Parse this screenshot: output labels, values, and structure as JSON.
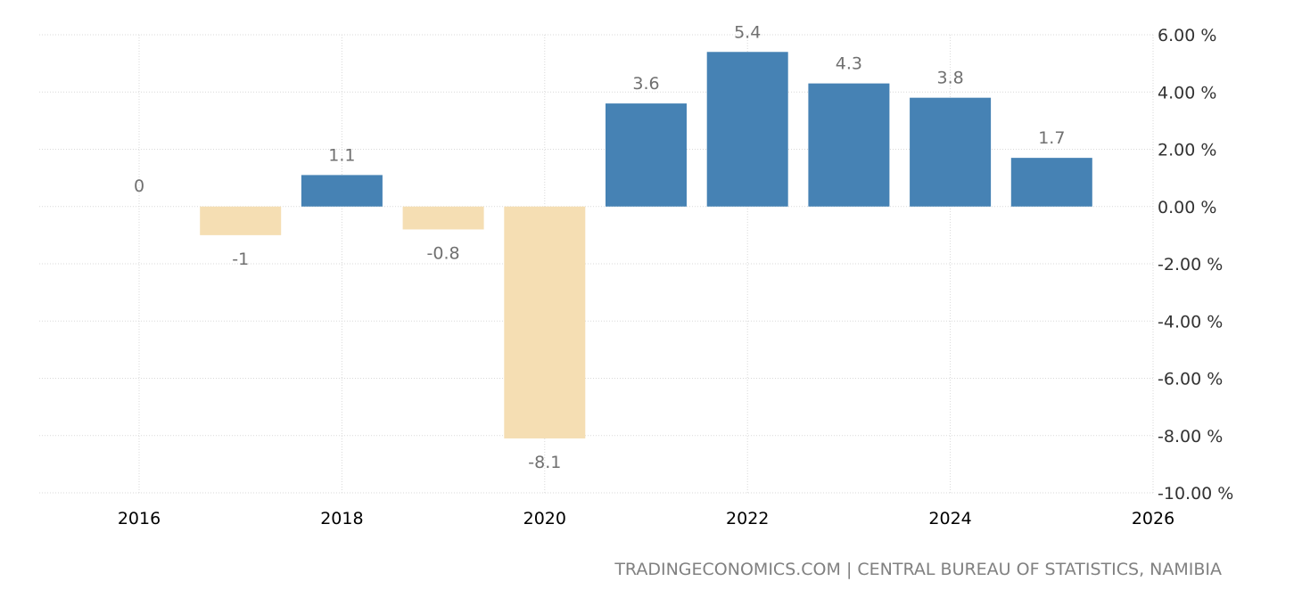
{
  "chart_data": {
    "type": "bar",
    "x": [
      2016,
      2017,
      2018,
      2019,
      2020,
      2021,
      2022,
      2023,
      2024,
      2025
    ],
    "values": [
      0,
      -1,
      1.1,
      -0.8,
      -8.1,
      3.6,
      5.4,
      4.3,
      3.8,
      1.7
    ],
    "data_labels": [
      "0",
      "-1",
      "1.1",
      "-0.8",
      "-8.1",
      "3.6",
      "5.4",
      "4.3",
      "3.8",
      "1.7"
    ],
    "xlim": [
      2016,
      2026
    ],
    "ylim": [
      -10,
      6
    ],
    "x_ticks": [
      2016,
      2018,
      2020,
      2022,
      2024,
      2026
    ],
    "y_ticks": [
      6,
      4,
      2,
      0,
      -2,
      -4,
      -6,
      -8,
      -10
    ],
    "y_tick_labels": [
      "6.00 %",
      "4.00 %",
      "2.00 %",
      "0.00 %",
      "-2.00 %",
      "-4.00 %",
      "-6.00 %",
      "-8.00 %",
      "-10.00 %"
    ],
    "x_tick_labels": [
      "2016",
      "2018",
      "2020",
      "2022",
      "2024",
      "2026"
    ],
    "title": "",
    "xlabel": "",
    "ylabel": "",
    "grid": true,
    "y_axis_side": "right",
    "colors": {
      "positive": "#4682b4",
      "negative": "#f5deb3",
      "grid": "#d9d9d9"
    }
  },
  "source": "TRADINGECONOMICS.COM | CENTRAL BUREAU OF STATISTICS, NAMIBIA"
}
